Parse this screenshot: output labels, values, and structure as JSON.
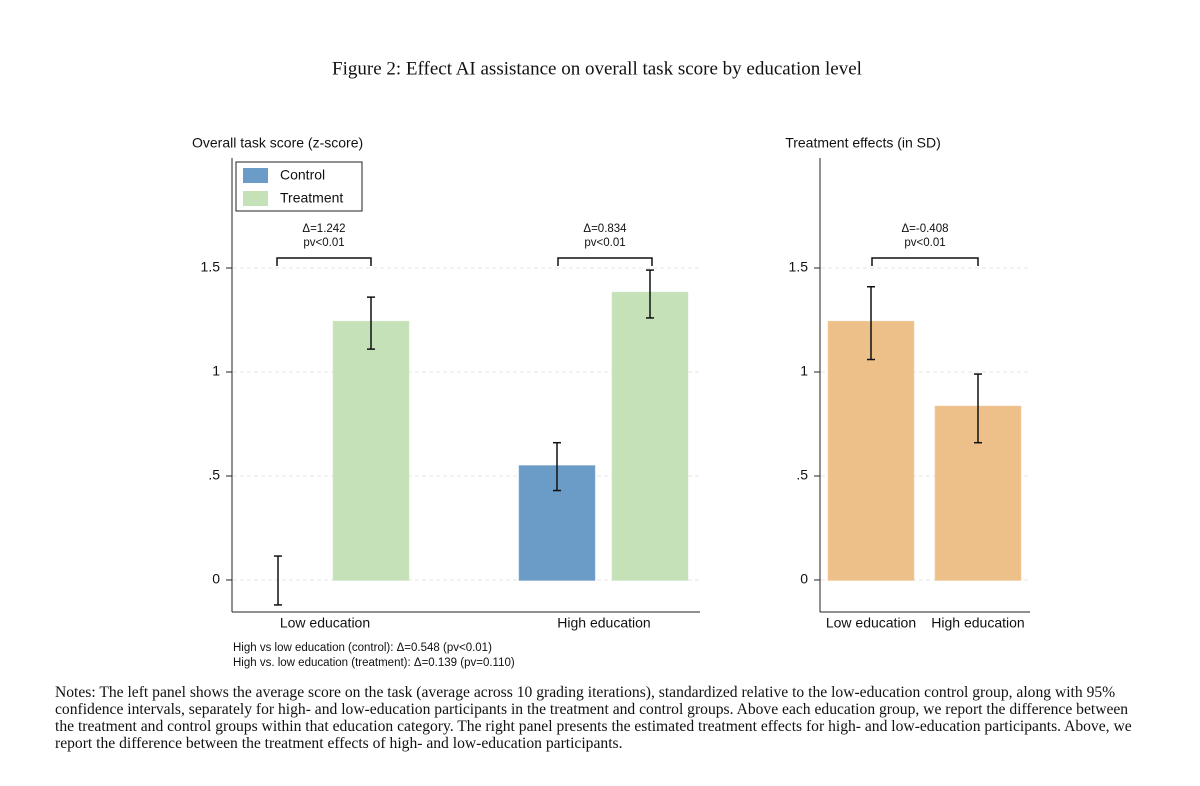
{
  "figure_title": "Figure 2: Effect AI assistance on overall task score by education level",
  "chart_data": [
    {
      "type": "bar",
      "y_label": "Overall task score (z-score)",
      "categories": [
        "Low education",
        "High education"
      ],
      "series": [
        {
          "name": "Control",
          "color": "#6b9bc7",
          "values": [
            0,
            0.548
          ],
          "ci_low": [
            -0.12,
            0.43
          ],
          "ci_high": [
            0.115,
            0.66
          ]
        },
        {
          "name": "Treatment",
          "color": "#c5e1b8",
          "values": [
            1.242,
            1.382
          ],
          "ci_low": [
            1.11,
            1.26
          ],
          "ci_high": [
            1.36,
            1.49
          ]
        }
      ],
      "brackets": [
        {
          "delta": "Δ=1.242",
          "pv": "pv<0.01"
        },
        {
          "delta": "Δ=0.834",
          "pv": "pv<0.01"
        }
      ],
      "annotations": [
        "High vs low education (control): Δ=0.548 (pv<0.01)",
        "High vs. low education (treatment): Δ=0.139 (pv=0.110)"
      ],
      "ylim": [
        -0.154,
        2.029
      ],
      "yticks": [
        0,
        {
          "value": 0.5,
          "label": ".5"
        },
        1,
        1.5
      ],
      "grid": true,
      "legend": "top-left"
    },
    {
      "type": "bar",
      "y_label": "Treatment effects (in SD)",
      "categories": [
        "Low education",
        "High education"
      ],
      "values": [
        1.242,
        0.834
      ],
      "ci_low": [
        1.06,
        0.66
      ],
      "ci_high": [
        1.41,
        0.99
      ],
      "color": "#eec089",
      "brackets": [
        {
          "delta": "Δ=-0.408",
          "pv": "pv<0.01"
        }
      ],
      "ylim": [
        -0.154,
        2.029
      ],
      "yticks": [
        0,
        {
          "value": 0.5,
          "label": ".5"
        },
        1,
        1.5
      ],
      "grid": true
    }
  ],
  "notes": "Notes: The left panel shows the average score on the task (average across 10 grading iterations), standardized relative to the low-education control group, along with 95% confidence intervals, separately for high- and low-education participants in the treatment and control groups. Above each education group, we report the difference between the treatment and control groups within that education category. The right panel presents the estimated treatment effects for high- and low-education participants. Above, we report the difference between the treatment effects of high- and low-education participants."
}
